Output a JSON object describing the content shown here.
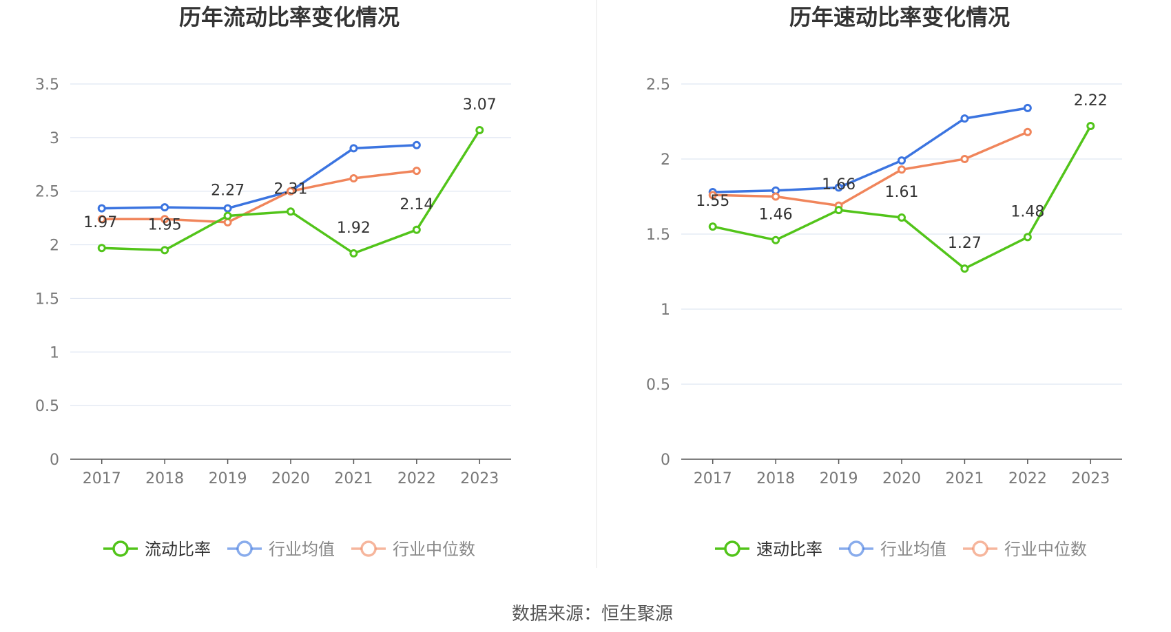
{
  "source_text": "数据来源：恒生聚源",
  "colors": {
    "primary": "#52c41a",
    "industry_avg": "#3b74e0",
    "industry_median": "#f0855b",
    "grid": "#dfe6f2",
    "axis": "#555555"
  },
  "chart_data": [
    {
      "type": "line",
      "title": "历年流动比率变化情况",
      "categories": [
        "2017",
        "2018",
        "2019",
        "2020",
        "2021",
        "2022",
        "2023"
      ],
      "ylim": [
        0,
        3.5
      ],
      "yticks": [
        "0",
        "0.5",
        "1",
        "1.5",
        "2",
        "2.5",
        "3",
        "3.5"
      ],
      "grid": true,
      "legend_position": "bottom",
      "series": [
        {
          "name": "流动比率",
          "color": "#52c41a",
          "values": [
            1.97,
            1.95,
            2.27,
            2.31,
            1.92,
            2.14,
            3.07
          ],
          "labels": [
            "1.97",
            "1.95",
            "2.27",
            "2.31",
            "1.92",
            "2.14",
            "3.07"
          ]
        },
        {
          "name": "行业均值",
          "color": "#3b74e0",
          "values": [
            2.34,
            2.35,
            2.34,
            2.5,
            2.9,
            2.93,
            null
          ]
        },
        {
          "name": "行业中位数",
          "color": "#f0855b",
          "values": [
            2.24,
            2.24,
            2.21,
            2.5,
            2.62,
            2.69,
            null
          ]
        }
      ]
    },
    {
      "type": "line",
      "title": "历年速动比率变化情况",
      "categories": [
        "2017",
        "2018",
        "2019",
        "2020",
        "2021",
        "2022",
        "2023"
      ],
      "ylim": [
        0,
        2.5
      ],
      "yticks": [
        "0",
        "0.5",
        "1",
        "1.5",
        "2",
        "2.5"
      ],
      "grid": true,
      "legend_position": "bottom",
      "series": [
        {
          "name": "速动比率",
          "color": "#52c41a",
          "values": [
            1.55,
            1.46,
            1.66,
            1.61,
            1.27,
            1.48,
            2.22
          ],
          "labels": [
            "1.55",
            "1.46",
            "1.66",
            "1.61",
            "1.27",
            "1.48",
            "2.22"
          ]
        },
        {
          "name": "行业均值",
          "color": "#3b74e0",
          "values": [
            1.78,
            1.79,
            1.81,
            1.99,
            2.27,
            2.34,
            null
          ]
        },
        {
          "name": "行业中位数",
          "color": "#f0855b",
          "values": [
            1.76,
            1.75,
            1.69,
            1.93,
            2.0,
            2.18,
            null
          ]
        }
      ]
    }
  ]
}
